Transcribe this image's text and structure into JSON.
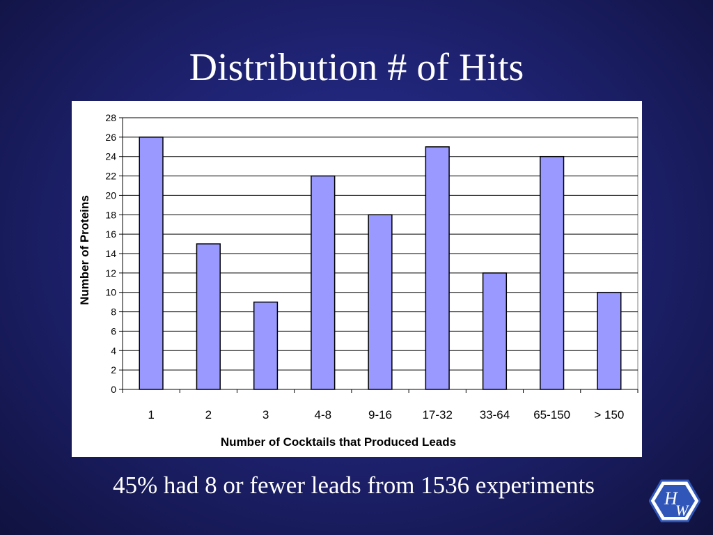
{
  "slide": {
    "title": "Distribution # of Hits",
    "caption": "45% had 8 or fewer leads from 1536 experiments"
  },
  "logo": {
    "icon": "hw-hexagon-logo-icon",
    "text_h": "H",
    "text_w": "W",
    "color": "#2f56b8"
  },
  "colors": {
    "bar_fill": "#9999ff",
    "bar_stroke": "#000000",
    "grid": "#000000",
    "panel_bg": "#ffffff"
  },
  "chart_data": {
    "type": "bar",
    "categories": [
      "1",
      "2",
      "3",
      "4-8",
      "9-16",
      "17-32",
      "33-64",
      "65-150",
      "> 150"
    ],
    "values": [
      26,
      15,
      9,
      22,
      18,
      25,
      12,
      24,
      10
    ],
    "xlabel": "Number of Cocktails that Produced Leads",
    "ylabel": "Number of Proteins",
    "ylim": [
      0,
      28
    ],
    "yticks": [
      0,
      2,
      4,
      6,
      8,
      10,
      12,
      14,
      16,
      18,
      20,
      22,
      24,
      26,
      28
    ],
    "grid": true,
    "legend": "none"
  }
}
